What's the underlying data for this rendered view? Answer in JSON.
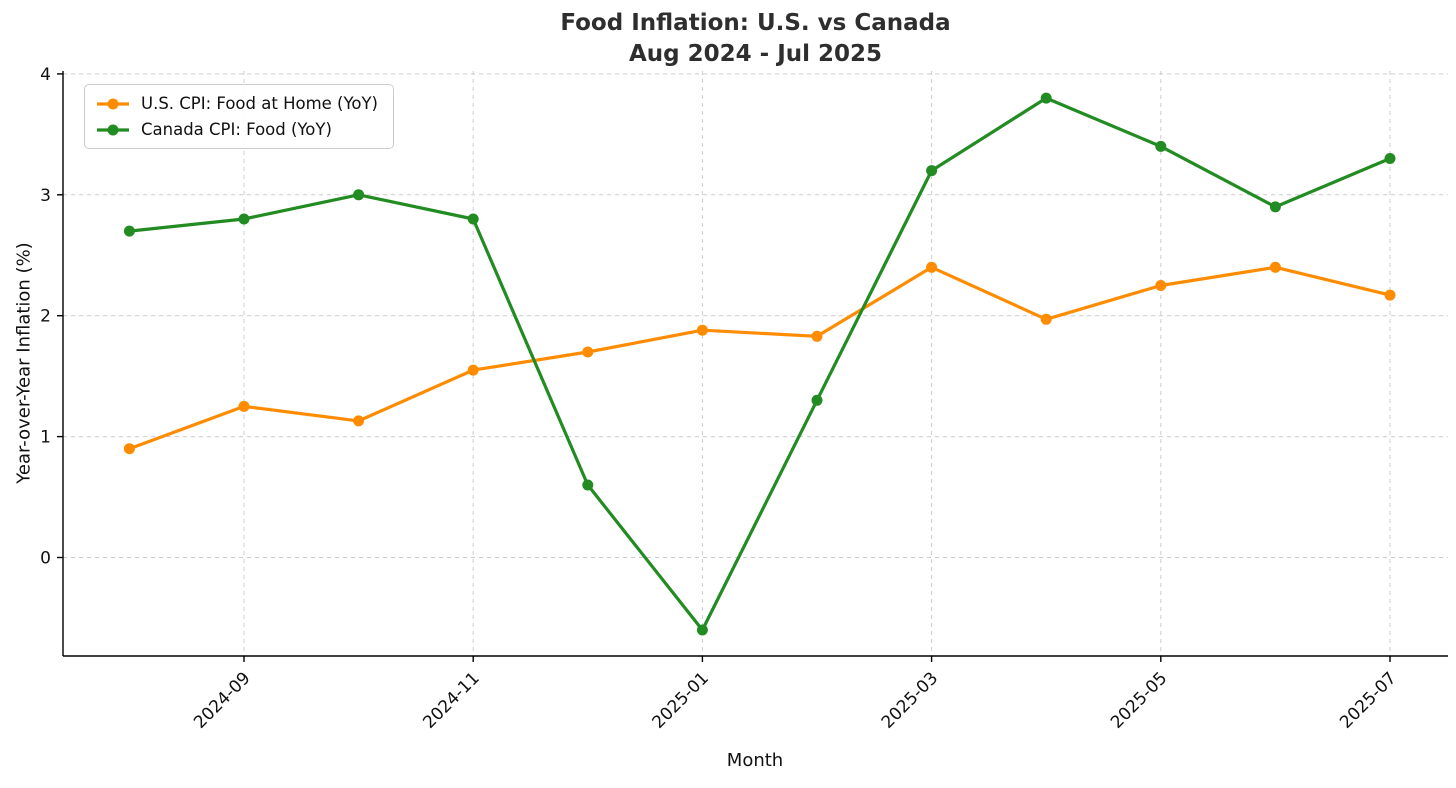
{
  "chart_data": {
    "type": "line",
    "title": "Food Inflation: U.S. vs Canada",
    "subtitle": "Aug 2024 - Jul 2025",
    "xlabel": "Month",
    "ylabel": "Year-over-Year Inflation (%)",
    "x": [
      "2024-08",
      "2024-09",
      "2024-10",
      "2024-11",
      "2024-12",
      "2025-01",
      "2025-02",
      "2025-03",
      "2025-04",
      "2025-05",
      "2025-06",
      "2025-07"
    ],
    "series": [
      {
        "name": "U.S. CPI: Food at Home (YoY)",
        "color": "#ff8c00",
        "values": [
          0.9,
          1.25,
          1.13,
          1.55,
          1.7,
          1.88,
          1.83,
          2.4,
          1.97,
          2.25,
          2.4,
          2.17
        ]
      },
      {
        "name": "Canada CPI: Food (YoY)",
        "color": "#228b22",
        "values": [
          2.7,
          2.8,
          3.0,
          2.8,
          0.6,
          -0.6,
          1.3,
          3.2,
          3.8,
          3.4,
          2.9,
          3.3
        ]
      }
    ],
    "y_ticks": [
      0,
      1,
      2,
      3,
      4
    ],
    "x_ticks_shown": [
      "2024-09",
      "2024-11",
      "2025-01",
      "2025-03",
      "2025-05",
      "2025-07"
    ],
    "ylim": [
      -0.82,
      4.02
    ],
    "grid": true,
    "grid_style": "dashed",
    "grid_color": "#cccccc",
    "axis_color": "#000000",
    "legend_position": "upper left",
    "x_tick_rotation_deg": 45
  }
}
